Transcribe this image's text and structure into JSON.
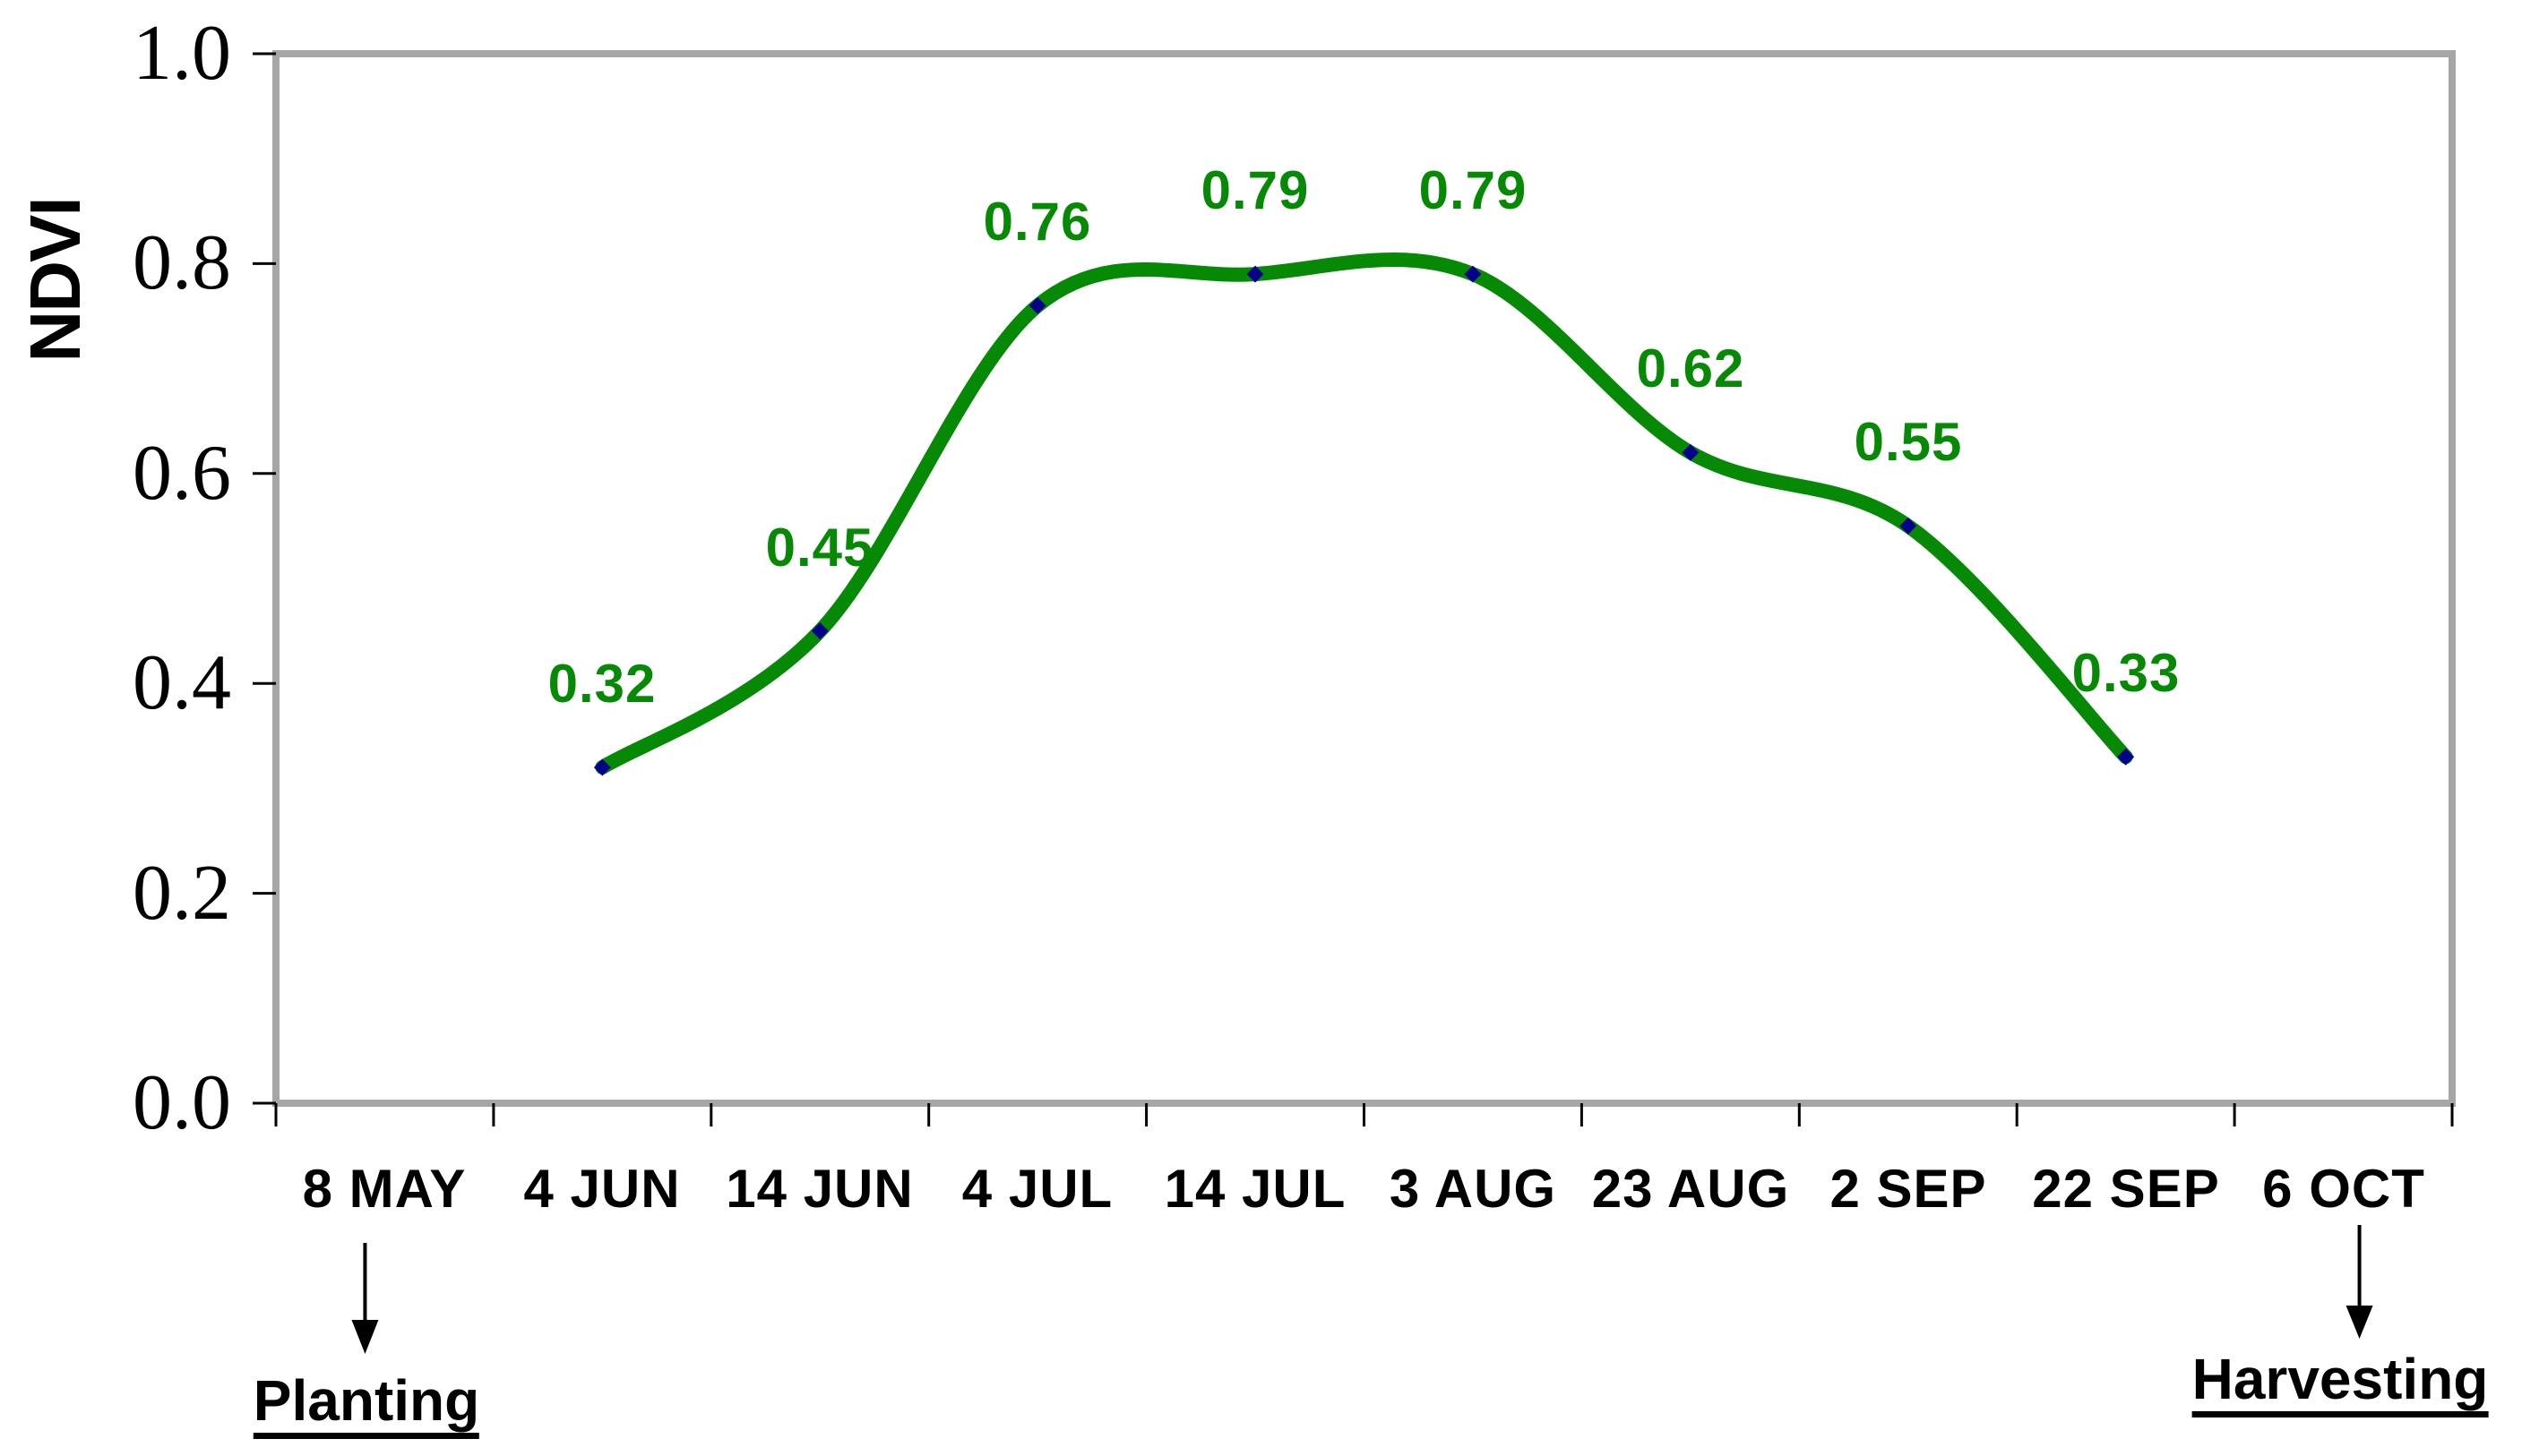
{
  "chart_data": {
    "type": "line",
    "title": "",
    "xlabel": "",
    "ylabel": "NDVI",
    "categories": [
      "8 MAY",
      "4 JUN",
      "14 JUN",
      "4 JUL",
      "14 JUL",
      "3 AUG",
      "23 AUG",
      "2 SEP",
      "22 SEP",
      "6 OCT"
    ],
    "ylim": [
      0.0,
      1.0
    ],
    "yticks": [
      {
        "value": 0.0,
        "label": "0.0"
      },
      {
        "value": 0.2,
        "label": "0.2"
      },
      {
        "value": 0.4,
        "label": "0.4"
      },
      {
        "value": 0.6,
        "label": "0.6"
      },
      {
        "value": 0.8,
        "label": "0.8"
      },
      {
        "value": 1.0,
        "label": "1.0"
      }
    ],
    "grid": false,
    "legend": "none",
    "line_style": "smoothed",
    "series": [
      {
        "name": "NDVI",
        "points": [
          {
            "category": "4 JUN",
            "value": 0.32,
            "label": "0.32"
          },
          {
            "category": "14 JUN",
            "value": 0.45,
            "label": "0.45"
          },
          {
            "category": "4 JUL",
            "value": 0.76,
            "label": "0.76"
          },
          {
            "category": "14 JUL",
            "value": 0.79,
            "label": "0.79"
          },
          {
            "category": "3 AUG",
            "value": 0.79,
            "label": "0.79"
          },
          {
            "category": "23 AUG",
            "value": 0.62,
            "label": "0.62"
          },
          {
            "category": "2 SEP",
            "value": 0.55,
            "label": "0.55"
          },
          {
            "category": "22 SEP",
            "value": 0.33,
            "label": "0.33"
          }
        ]
      }
    ],
    "annotations": [
      {
        "text": "Planting",
        "category": "8 MAY"
      },
      {
        "text": "Harvesting",
        "category": "6 OCT"
      }
    ],
    "colors": {
      "line": "#068A06",
      "marker": "#00008B",
      "value_label": "#068A06",
      "frame": "#A6A6A6",
      "tick": "#000000",
      "text": "#000000",
      "background": "#FFFFFF"
    }
  }
}
